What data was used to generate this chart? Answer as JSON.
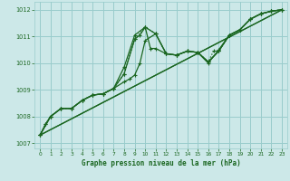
{
  "title": "Graphe pression niveau de la mer (hPa)",
  "bg_color": "#cce8e8",
  "grid_color": "#99cccc",
  "line_color": "#1a6620",
  "xlim": [
    -0.5,
    23.5
  ],
  "ylim": [
    1006.8,
    1012.3
  ],
  "xticks": [
    0,
    1,
    2,
    3,
    4,
    5,
    6,
    7,
    8,
    9,
    10,
    11,
    12,
    13,
    14,
    15,
    16,
    17,
    18,
    19,
    20,
    21,
    22,
    23
  ],
  "yticks": [
    1007,
    1008,
    1009,
    1010,
    1011,
    1012
  ],
  "trend_line": {
    "x": [
      0,
      23
    ],
    "y": [
      1007.3,
      1012.0
    ]
  },
  "trend_line2": {
    "x": [
      0,
      23
    ],
    "y": [
      1007.3,
      1012.0
    ]
  },
  "main_series": {
    "x": [
      0,
      1,
      2,
      3,
      4,
      5,
      6,
      7,
      8,
      9,
      10,
      11,
      12,
      13,
      14,
      15,
      16,
      17,
      18,
      19,
      20,
      21,
      22,
      23
    ],
    "y": [
      1007.3,
      1008.0,
      1008.3,
      1008.3,
      1008.6,
      1008.8,
      1008.85,
      1009.05,
      1009.85,
      1011.05,
      1011.35,
      1011.1,
      1010.35,
      1010.3,
      1010.45,
      1010.4,
      1010.05,
      1010.45,
      1011.05,
      1011.25,
      1011.65,
      1011.85,
      1011.95,
      1012.0
    ]
  },
  "series2": {
    "x": [
      0,
      1,
      2,
      3,
      4,
      5,
      6,
      7,
      8,
      9,
      9.5,
      10,
      10.5,
      11,
      12,
      13,
      14,
      15,
      16,
      17,
      18,
      19,
      20,
      21,
      22,
      23
    ],
    "y": [
      1007.3,
      1008.0,
      1008.3,
      1008.3,
      1008.6,
      1008.8,
      1008.85,
      1009.05,
      1009.6,
      1010.9,
      1011.05,
      1011.35,
      1010.55,
      1010.55,
      1010.35,
      1010.3,
      1010.45,
      1010.4,
      1010.0,
      1010.5,
      1011.05,
      1011.25,
      1011.65,
      1011.85,
      1011.95,
      1012.0
    ]
  },
  "series3": {
    "x": [
      0,
      0.5,
      1,
      2,
      3,
      4,
      5,
      6,
      7,
      8,
      8.5,
      9,
      9.5,
      10,
      11,
      12,
      13,
      14,
      15,
      16,
      17,
      18,
      19,
      20,
      21,
      22,
      23
    ],
    "y": [
      1007.3,
      1007.7,
      1008.0,
      1008.3,
      1008.3,
      1008.6,
      1008.8,
      1008.85,
      1009.05,
      1009.3,
      1009.4,
      1009.55,
      1010.0,
      1010.85,
      1011.1,
      1010.35,
      1010.3,
      1010.45,
      1010.4,
      1010.05,
      1010.45,
      1011.05,
      1011.25,
      1011.65,
      1011.85,
      1011.95,
      1012.0
    ]
  },
  "dotted_series": {
    "x": [
      0,
      0.5,
      1,
      2,
      3,
      4,
      5,
      6,
      7,
      8,
      9,
      10,
      11,
      12,
      13,
      14,
      15,
      16,
      16.5,
      17,
      18,
      19,
      20,
      21,
      22,
      23
    ],
    "y": [
      1007.3,
      1007.7,
      1008.0,
      1008.3,
      1008.3,
      1008.6,
      1008.8,
      1008.85,
      1009.05,
      1009.6,
      1010.9,
      1011.35,
      1011.1,
      1010.35,
      1010.3,
      1010.45,
      1010.4,
      1010.05,
      1010.45,
      1010.45,
      1011.05,
      1011.25,
      1011.65,
      1011.85,
      1011.95,
      1012.0
    ]
  }
}
